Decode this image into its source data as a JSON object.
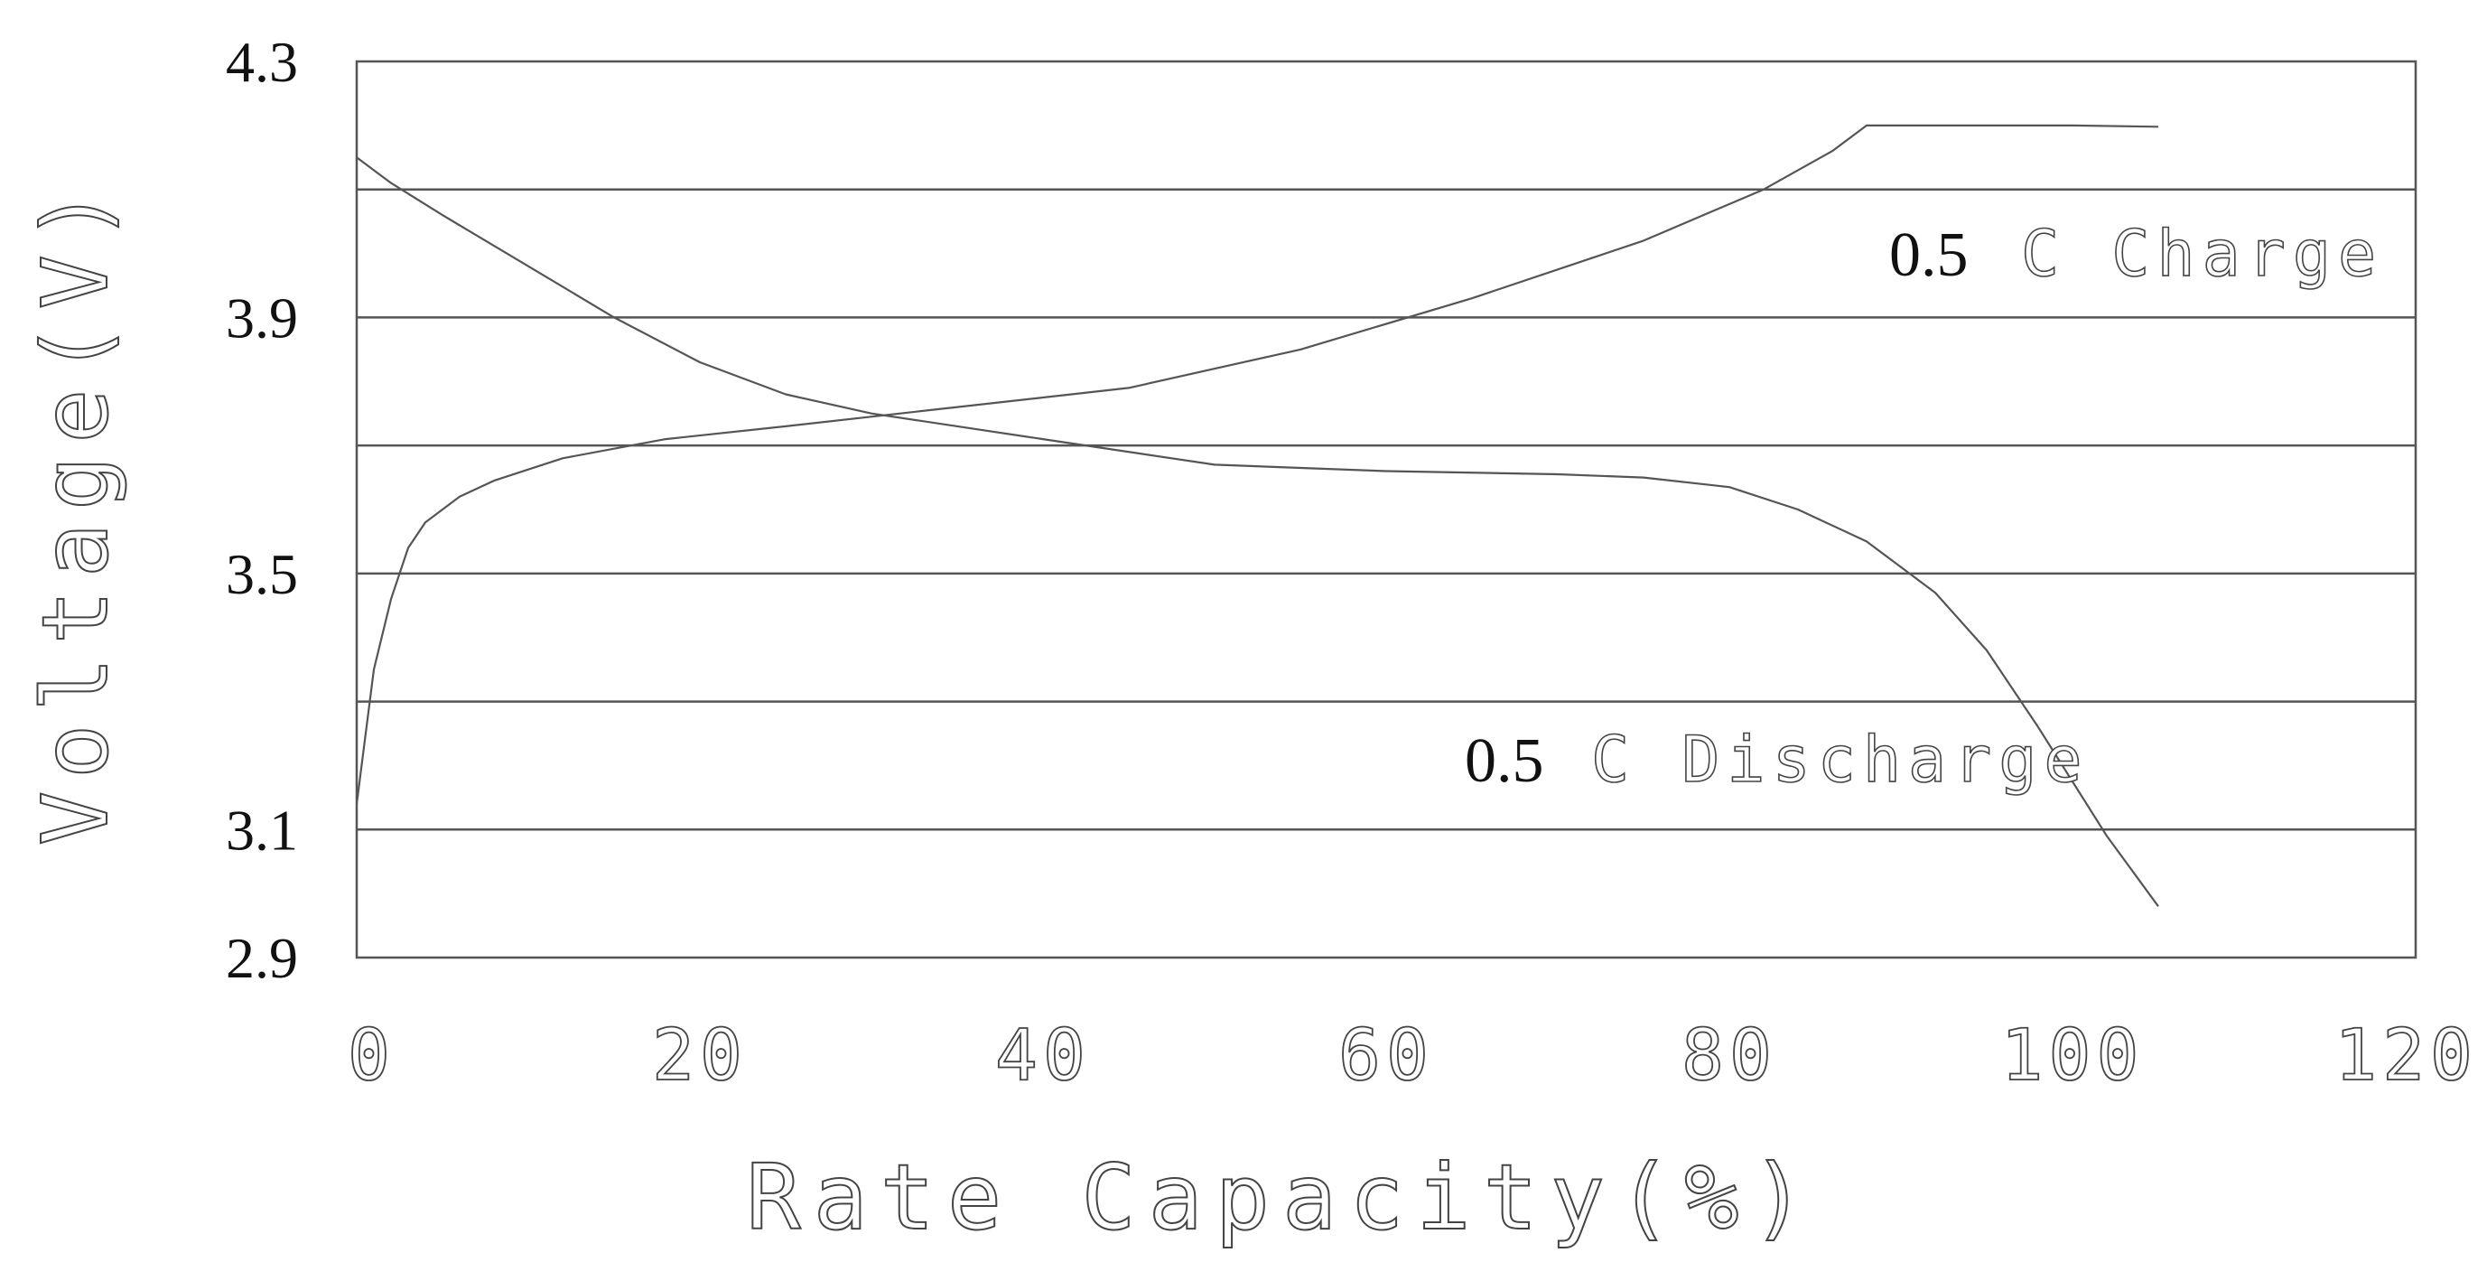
{
  "chart_data": {
    "type": "line",
    "title": "",
    "xlabel": "Rate Capacity(%)",
    "ylabel": "Voltage(V)",
    "xlim": [
      0,
      120
    ],
    "ylim": [
      2.9,
      4.3
    ],
    "x_ticks": [
      "0",
      "20",
      "40",
      "60",
      "80",
      "100",
      "120"
    ],
    "y_ticks": [
      "2.9",
      "3.1",
      "3.5",
      "3.9",
      "4.3"
    ],
    "y_gridlines": [
      3.1,
      3.3,
      3.5,
      3.7,
      3.9,
      4.1
    ],
    "grid": true,
    "line_color": "#555555",
    "series": [
      {
        "name_value": "0.5",
        "name_text": "C Charge",
        "x": [
          0,
          1,
          2,
          3,
          4,
          6,
          8,
          12,
          18,
          25,
          35,
          45,
          55,
          65,
          75,
          82,
          86,
          88,
          94,
          100,
          105
        ],
        "y": [
          3.14,
          3.35,
          3.46,
          3.54,
          3.58,
          3.62,
          3.645,
          3.68,
          3.71,
          3.73,
          3.76,
          3.79,
          3.85,
          3.93,
          4.02,
          4.1,
          4.16,
          4.2,
          4.2,
          4.2,
          4.198
        ]
      },
      {
        "name_value": "0.5",
        "name_text": "C Discharge",
        "x": [
          0,
          2,
          5,
          10,
          15,
          20,
          25,
          30,
          40,
          50,
          60,
          70,
          75,
          80,
          84,
          88,
          92,
          95,
          98,
          102,
          105
        ],
        "y": [
          4.15,
          4.11,
          4.06,
          3.98,
          3.9,
          3.83,
          3.78,
          3.75,
          3.71,
          3.67,
          3.66,
          3.655,
          3.65,
          3.635,
          3.6,
          3.55,
          3.47,
          3.38,
          3.26,
          3.09,
          2.98
        ]
      }
    ]
  }
}
